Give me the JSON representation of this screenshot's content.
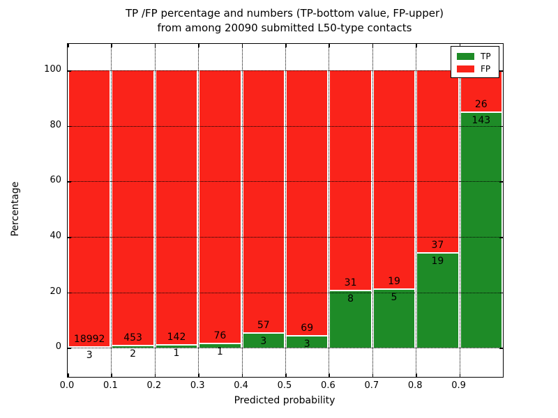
{
  "title": {
    "line1": "TP /FP percentage and numbers (TP-bottom value, FP-upper)",
    "line2": "from among 20090 submitted L50-type contacts"
  },
  "chart_data": {
    "type": "bar",
    "stacked": true,
    "normalized": "each bar scaled to 100%, heights = count/(TP+FP)*100",
    "title": "TP /FP percentage and numbers (TP-bottom value, FP-upper) from among 20090 submitted L50-type contacts",
    "xlabel": "Predicted probability",
    "ylabel": "Percentage",
    "total_contacts": 20090,
    "bins": [
      0.0,
      0.1,
      0.2,
      0.3,
      0.4,
      0.5,
      0.6,
      0.7,
      0.8,
      0.9
    ],
    "bin_width": 0.1,
    "series": [
      {
        "name": "TP",
        "color": "#1e8b27",
        "counts": [
          3,
          2,
          1,
          1,
          3,
          3,
          8,
          5,
          19,
          143
        ]
      },
      {
        "name": "FP",
        "color": "#fa231a",
        "counts": [
          18992,
          453,
          142,
          76,
          57,
          69,
          31,
          19,
          37,
          26
        ]
      }
    ],
    "tp_percent": [
      0.02,
      0.44,
      0.7,
      1.3,
      5.0,
      4.17,
      20.51,
      20.83,
      33.93,
      84.62
    ],
    "xticks": [
      "0.0",
      "0.1",
      "0.2",
      "0.3",
      "0.4",
      "0.5",
      "0.6",
      "0.7",
      "0.8",
      "0.9"
    ],
    "xtick_values": [
      0.0,
      0.1,
      0.2,
      0.3,
      0.4,
      0.5,
      0.6,
      0.7,
      0.8,
      0.9
    ],
    "yticks": [
      0,
      20,
      40,
      60,
      80,
      100
    ],
    "xlim": [
      0.0,
      1.0
    ],
    "ylim": [
      -10.5,
      109.6
    ],
    "grid": "dotted black, on x ticks and y ticks, drawn over bars",
    "bar_edge_color": "#ffffff",
    "annotation_note": "TP count printed below segment boundary, FP count printed above it",
    "legend": {
      "position": "upper right",
      "entries": [
        {
          "label": "TP",
          "color": "#1e8b27"
        },
        {
          "label": "FP",
          "color": "#fa231a"
        }
      ]
    }
  }
}
